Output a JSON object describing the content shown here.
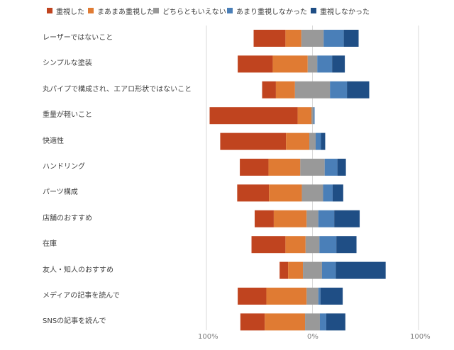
{
  "chart_data": {
    "type": "bar",
    "orientation": "horizontal",
    "stacked": "diverging",
    "title": "",
    "legend_position": "top",
    "grid": true,
    "categories": [
      "レーザーではないこと",
      "シンプルな塗装",
      "丸パイプで構成され、エアロ形状ではないこと",
      "重量が軽いこと",
      "快適性",
      "ハンドリング",
      "パーツ構成",
      "店舗のおすすめ",
      "在庫",
      "友人・知人のおすすめ",
      "メディアの記事を読んで",
      "SNSの記事を読んで"
    ],
    "series": [
      {
        "name": "重視した",
        "color": "#C0441F",
        "values": [
          30,
          33,
          13,
          83,
          62,
          27,
          30,
          18,
          32,
          8,
          27,
          23
        ]
      },
      {
        "name": "まあまあ重視した",
        "color": "#E07B33",
        "values": [
          15,
          33,
          18,
          13,
          22,
          30,
          31,
          31,
          19,
          14,
          38,
          38
        ]
      },
      {
        "name": "どちらともいえない",
        "color": "#999999",
        "values": [
          21,
          9,
          33,
          2,
          6,
          23,
          20,
          11,
          13,
          18,
          11,
          14
        ]
      },
      {
        "name": "あまり重視しなかった",
        "color": "#4A7FB8",
        "values": [
          19,
          14,
          16,
          1,
          5,
          12,
          9,
          15,
          16,
          13,
          2,
          6
        ]
      },
      {
        "name": "重視しなかった",
        "color": "#1F4E85",
        "values": [
          14,
          12,
          21,
          0,
          4,
          8,
          10,
          24,
          19,
          47,
          21,
          18
        ]
      }
    ],
    "xlim": [
      -100,
      100
    ],
    "xticks": [
      "100%",
      "0%",
      "100%"
    ]
  }
}
